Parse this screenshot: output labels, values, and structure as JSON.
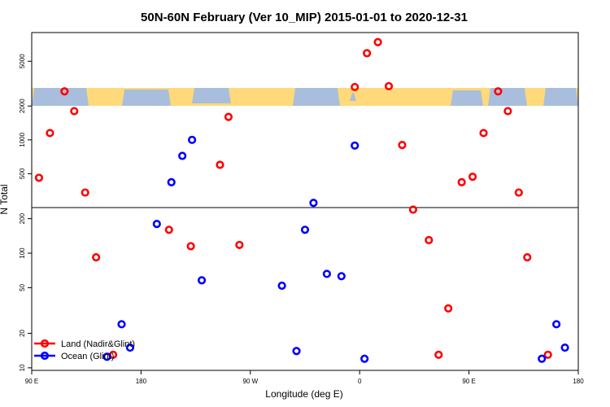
{
  "chart_data": {
    "type": "scatter",
    "title": "50N-60N February (Ver 10_MIP)   2015-01-01 to 2020-12-31",
    "xlabel": "Longitude (deg E)",
    "ylabel": "N Total",
    "y_scale": "log",
    "xlim": [
      90,
      540
    ],
    "ylim_upper": [
      250,
      9000
    ],
    "ylim_lower": [
      9.5,
      250
    ],
    "grid": false,
    "legend_position": "bottom-left",
    "x_ticks": [
      {
        "value": 90,
        "label": "90 E"
      },
      {
        "value": 180,
        "label": "180"
      },
      {
        "value": 270,
        "label": "90 W"
      },
      {
        "value": 360,
        "label": "0"
      },
      {
        "value": 450,
        "label": "90 E"
      },
      {
        "value": 540,
        "label": "180"
      }
    ],
    "y_ticks_upper": [
      {
        "value": 500,
        "label": "500"
      },
      {
        "value": 1000,
        "label": "1000"
      },
      {
        "value": 2000,
        "label": "2000"
      },
      {
        "value": 5000,
        "label": "5000"
      }
    ],
    "y_ticks_lower": [
      {
        "value": 10,
        "label": "10"
      },
      {
        "value": 20,
        "label": "20"
      },
      {
        "value": 50,
        "label": "50"
      },
      {
        "value": 100,
        "label": "100"
      },
      {
        "value": 200,
        "label": "200"
      }
    ],
    "map_strip": {
      "land_color": "#FFD97A",
      "ocean_color": "#A9BEDD"
    },
    "series": [
      {
        "name": "Land (Nadir&Glint)",
        "color": "#FF0000",
        "points": [
          [
            96,
            460
          ],
          [
            105,
            1150
          ],
          [
            117,
            2700
          ],
          [
            125,
            1800
          ],
          [
            134,
            340
          ],
          [
            143,
            92
          ],
          [
            157,
            13
          ],
          [
            203,
            160
          ],
          [
            221,
            115
          ],
          [
            245,
            600
          ],
          [
            252,
            1600
          ],
          [
            261,
            118
          ],
          [
            356,
            2950
          ],
          [
            366,
            5900
          ],
          [
            375,
            7400
          ],
          [
            384,
            3000
          ],
          [
            395,
            900
          ],
          [
            404,
            240
          ],
          [
            417,
            130
          ],
          [
            425,
            13
          ],
          [
            433,
            33
          ],
          [
            444,
            420
          ],
          [
            453,
            470
          ],
          [
            462,
            1150
          ],
          [
            474,
            2700
          ],
          [
            482,
            1800
          ],
          [
            491,
            340
          ],
          [
            498,
            92
          ],
          [
            515,
            13
          ]
        ]
      },
      {
        "name": "Ocean (Glint)",
        "color": "#0000FF",
        "points": [
          [
            152,
            12.5
          ],
          [
            164,
            24
          ],
          [
            171,
            15
          ],
          [
            193,
            180
          ],
          [
            205,
            420
          ],
          [
            214,
            720
          ],
          [
            222,
            1000
          ],
          [
            230,
            58
          ],
          [
            296,
            52
          ],
          [
            308,
            14
          ],
          [
            315,
            160
          ],
          [
            322,
            275
          ],
          [
            333,
            66
          ],
          [
            345,
            63
          ],
          [
            356,
            890
          ],
          [
            364,
            12
          ]
        ]
      },
      {
        "name": "",
        "color": "#0000FF",
        "points": [
          [
            510,
            12
          ],
          [
            522,
            24
          ],
          [
            529,
            15
          ]
        ]
      }
    ]
  }
}
